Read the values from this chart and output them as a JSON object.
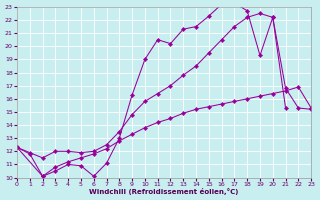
{
  "bg_color": "#c8eef0",
  "line_color": "#990099",
  "xlabel": "Windchill (Refroidissement éolien,°C)",
  "xlim": [
    0,
    23
  ],
  "ylim": [
    10,
    23
  ],
  "xticks": [
    0,
    1,
    2,
    3,
    4,
    5,
    6,
    7,
    8,
    9,
    10,
    11,
    12,
    13,
    14,
    15,
    16,
    17,
    18,
    19,
    20,
    21,
    22,
    23
  ],
  "yticks": [
    10,
    11,
    12,
    13,
    14,
    15,
    16,
    17,
    18,
    19,
    20,
    21,
    22,
    23
  ],
  "line1_x": [
    0,
    1,
    2,
    3,
    4,
    5,
    6,
    7,
    8,
    9,
    10,
    11,
    12,
    13,
    14,
    15,
    16,
    17,
    18,
    19,
    20,
    21
  ],
  "line1_y": [
    12.3,
    11.8,
    10.1,
    10.5,
    11.0,
    10.9,
    10.1,
    11.1,
    13.0,
    16.3,
    19.0,
    20.5,
    20.2,
    21.3,
    21.5,
    22.3,
    23.2,
    23.3,
    22.7,
    19.3,
    22.2,
    15.3
  ],
  "line2_x": [
    0,
    1,
    2,
    3,
    4,
    5,
    6,
    7,
    8,
    9,
    10,
    11,
    12,
    13,
    14,
    15,
    16,
    17,
    18,
    19,
    20,
    21,
    22,
    23
  ],
  "line2_y": [
    12.3,
    11.9,
    11.5,
    12.0,
    12.0,
    11.9,
    12.0,
    12.5,
    13.5,
    14.8,
    15.8,
    16.4,
    17.0,
    17.8,
    18.5,
    19.5,
    20.5,
    21.5,
    22.2,
    22.5,
    22.2,
    16.8,
    15.3,
    15.2
  ],
  "line3_x": [
    0,
    2,
    3,
    4,
    5,
    6,
    7,
    8,
    9,
    10,
    11,
    12,
    13,
    14,
    15,
    16,
    17,
    18,
    19,
    20,
    21,
    22,
    23
  ],
  "line3_y": [
    12.3,
    10.1,
    10.8,
    11.2,
    11.5,
    11.8,
    12.2,
    12.8,
    13.3,
    13.8,
    14.2,
    14.5,
    14.9,
    15.2,
    15.4,
    15.6,
    15.8,
    16.0,
    16.2,
    16.4,
    16.6,
    16.9,
    15.3
  ]
}
